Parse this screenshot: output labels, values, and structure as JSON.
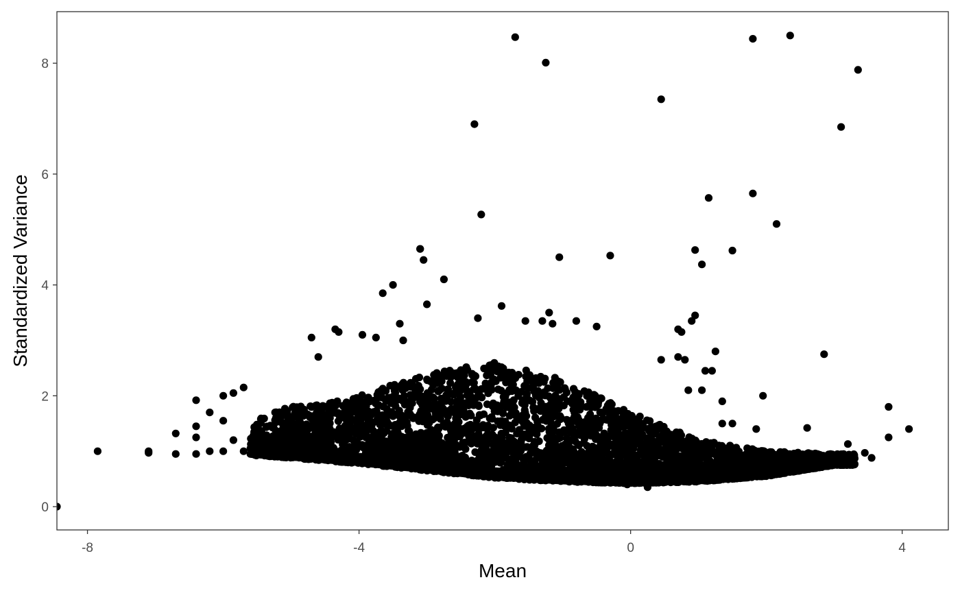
{
  "chart_data": {
    "type": "scatter",
    "title": "",
    "xlabel": "Mean",
    "ylabel": "Standardized Variance",
    "xlim": [
      -8.45,
      4.68
    ],
    "ylim": [
      -0.42,
      8.93
    ],
    "x_ticks": [
      -8,
      -4,
      0,
      4
    ],
    "x_tick_labels": [
      "-8",
      "-4",
      "0",
      "4"
    ],
    "y_ticks": [
      0,
      2,
      4,
      6,
      8
    ],
    "y_tick_labels": [
      "0",
      "2",
      "4",
      "6",
      "8"
    ],
    "grid": false,
    "legend": "none",
    "point_color": "#000000",
    "x": [
      -8.45,
      -7.85,
      -7.1,
      -7.1,
      -6.7,
      -6.7,
      -6.4,
      -6.4,
      -6.4,
      -6.4,
      -6.2,
      -6.2,
      -6.0,
      -6.0,
      -6.0,
      -5.85,
      -5.85,
      -5.7,
      -5.7,
      -1.7,
      -1.25,
      0.45,
      1.8,
      2.35,
      3.35,
      3.1,
      -2.3,
      -2.2,
      1.15,
      1.8,
      2.15,
      -1.05,
      -0.3,
      0.95,
      1.05,
      1.5,
      -3.1,
      -3.05,
      -3.1,
      -2.75,
      -3.65,
      -3.5,
      -3.0,
      -2.25,
      -1.9,
      -1.55,
      -1.3,
      -1.2,
      -1.15,
      -0.8,
      -0.5,
      0.7,
      0.75,
      0.95,
      0.9,
      -4.35,
      -4.7,
      -4.3,
      -4.6,
      -3.95,
      -3.75,
      -3.4,
      -3.35,
      0.45,
      1.25,
      1.2,
      0.7,
      0.8,
      0.85,
      1.05,
      1.1,
      2.85,
      1.35,
      1.35,
      1.5,
      1.95,
      1.85,
      2.6,
      3.8,
      4.1,
      3.8,
      3.45,
      3.55,
      3.2,
      0.25,
      -0.05,
      0.35
    ],
    "y": [
      0.0,
      1.0,
      0.97,
      1.0,
      0.95,
      1.32,
      0.95,
      1.45,
      1.25,
      1.92,
      1.0,
      1.7,
      1.0,
      1.55,
      2.0,
      1.2,
      2.05,
      1.0,
      2.15,
      8.47,
      8.01,
      7.35,
      8.44,
      8.5,
      7.88,
      6.85,
      6.9,
      5.27,
      5.57,
      5.65,
      5.1,
      4.5,
      4.53,
      4.63,
      4.37,
      4.62,
      4.65,
      4.45,
      4.65,
      4.1,
      3.85,
      4.0,
      3.65,
      3.4,
      3.62,
      3.35,
      3.35,
      3.5,
      3.3,
      3.35,
      3.25,
      3.2,
      3.15,
      3.45,
      3.35,
      3.2,
      3.05,
      3.15,
      2.7,
      3.1,
      3.05,
      3.3,
      3.0,
      2.65,
      2.8,
      2.45,
      2.7,
      2.65,
      2.1,
      2.1,
      2.45,
      2.75,
      1.5,
      1.9,
      1.5,
      2.0,
      1.4,
      1.42,
      1.25,
      1.4,
      1.8,
      0.97,
      0.88,
      1.13,
      0.35,
      0.4,
      1.0
    ],
    "dense_cluster": {
      "x_range": [
        -5.6,
        3.3
      ],
      "y_floor_curve": [
        [
          -5.6,
          0.93
        ],
        [
          -5.0,
          0.88
        ],
        [
          -4.0,
          0.78
        ],
        [
          -3.0,
          0.65
        ],
        [
          -2.0,
          0.52
        ],
        [
          -1.0,
          0.45
        ],
        [
          0.0,
          0.42
        ],
        [
          1.0,
          0.45
        ],
        [
          2.0,
          0.55
        ],
        [
          3.0,
          0.75
        ]
      ],
      "y_ceiling_curve": [
        [
          -5.6,
          1.6
        ],
        [
          -5.0,
          1.8
        ],
        [
          -4.0,
          2.0
        ],
        [
          -3.0,
          2.4
        ],
        [
          -2.0,
          2.6
        ],
        [
          -1.0,
          2.3
        ],
        [
          0.0,
          1.7
        ],
        [
          1.0,
          1.2
        ],
        [
          2.0,
          1.0
        ],
        [
          3.0,
          0.95
        ]
      ]
    }
  }
}
